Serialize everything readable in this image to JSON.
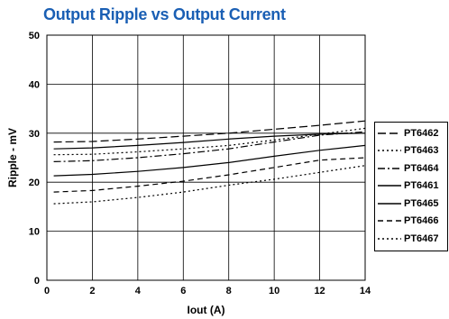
{
  "chart_data": {
    "type": "line",
    "title": "Output Ripple vs Output Current",
    "xlabel": "Iout  (A)",
    "ylabel": "Ripple - mV",
    "xlim": [
      0,
      14
    ],
    "ylim": [
      0,
      50
    ],
    "xticks": [
      0,
      2,
      4,
      6,
      8,
      10,
      12,
      14
    ],
    "yticks": [
      0,
      10,
      20,
      30,
      40,
      50
    ],
    "grid": true,
    "legend": "right",
    "x": [
      0.3,
      2,
      4,
      6,
      8,
      10,
      12,
      14
    ],
    "series": [
      {
        "name": "PT6462",
        "dash": "long-dash",
        "values": [
          28.2,
          28.3,
          28.8,
          29.4,
          30.0,
          30.8,
          31.6,
          32.5
        ]
      },
      {
        "name": "PT6463",
        "dash": "dot",
        "values": [
          25.6,
          25.7,
          26.2,
          26.8,
          27.5,
          28.6,
          29.8,
          31.0
        ]
      },
      {
        "name": "PT6464",
        "dash": "dash-dot",
        "values": [
          24.2,
          24.4,
          25.0,
          25.8,
          26.8,
          28.2,
          29.6,
          30.3
        ]
      },
      {
        "name": "PT6461",
        "dash": "solid",
        "values": [
          26.8,
          27.0,
          27.5,
          28.1,
          28.8,
          29.4,
          29.8,
          30.0
        ]
      },
      {
        "name": "PT6465",
        "dash": "solid",
        "values": [
          21.3,
          21.6,
          22.2,
          23.0,
          24.0,
          25.3,
          26.5,
          27.5
        ]
      },
      {
        "name": "PT6466",
        "dash": "dash",
        "values": [
          18.0,
          18.3,
          19.2,
          20.2,
          21.5,
          23.0,
          24.5,
          25.0
        ]
      },
      {
        "name": "PT6467",
        "dash": "dot",
        "values": [
          15.6,
          16.0,
          16.9,
          18.0,
          19.4,
          20.6,
          22.0,
          23.4
        ]
      }
    ]
  }
}
